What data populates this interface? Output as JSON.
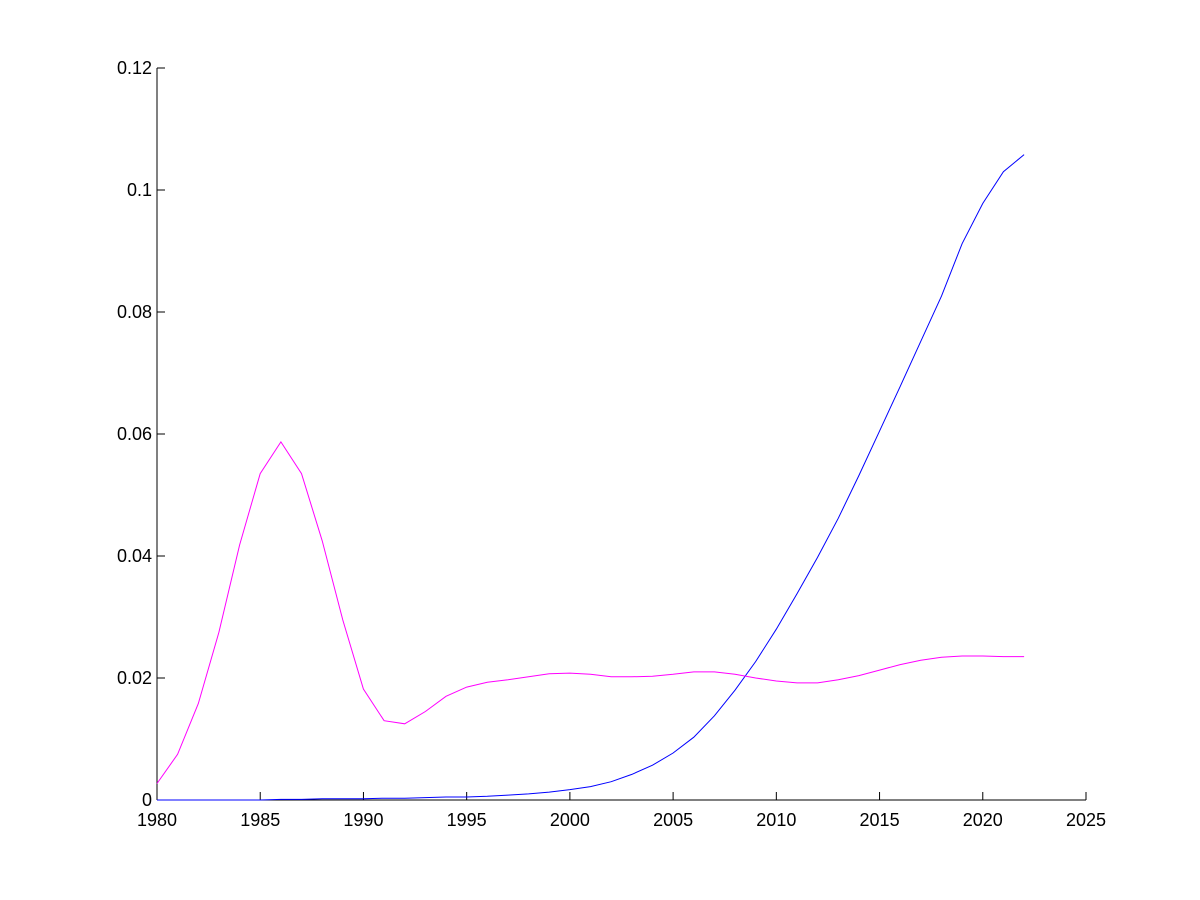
{
  "chart_data": {
    "type": "line",
    "title": "",
    "xlabel": "",
    "ylabel": "",
    "xlim": [
      1980,
      2025
    ],
    "ylim": [
      0,
      0.12
    ],
    "xticks": [
      1980,
      1985,
      1990,
      1995,
      2000,
      2005,
      2010,
      2015,
      2020,
      2025
    ],
    "yticks": [
      0,
      0.02,
      0.04,
      0.06,
      0.08,
      0.1,
      0.12
    ],
    "xtick_labels": [
      "1980",
      "1985",
      "1990",
      "1995",
      "2000",
      "2005",
      "2010",
      "2015",
      "2020",
      "2025"
    ],
    "ytick_labels": [
      "0",
      "0.02",
      "0.04",
      "0.06",
      "0.08",
      "0.1",
      "0.12"
    ],
    "grid": false,
    "legend": "none",
    "series": [
      {
        "color": "#0000ff",
        "x": [
          1980,
          1981,
          1982,
          1983,
          1984,
          1985,
          1986,
          1987,
          1988,
          1989,
          1990,
          1991,
          1992,
          1993,
          1994,
          1995,
          1996,
          1997,
          1998,
          1999,
          2000,
          2001,
          2002,
          2003,
          2004,
          2005,
          2006,
          2007,
          2008,
          2009,
          2010,
          2011,
          2012,
          2013,
          2014,
          2015,
          2016,
          2017,
          2018,
          2019,
          2020,
          2021,
          2022
        ],
        "values": [
          0.0,
          0.0,
          0.0,
          0.0,
          0.0,
          0.0,
          0.0001,
          0.0001,
          0.0002,
          0.0002,
          0.0002,
          0.0003,
          0.0003,
          0.0004,
          0.0005,
          0.0005,
          0.0006,
          0.0008,
          0.001,
          0.0013,
          0.0017,
          0.0022,
          0.003,
          0.0042,
          0.0057,
          0.0077,
          0.0103,
          0.0138,
          0.018,
          0.0227,
          0.028,
          0.0338,
          0.0398,
          0.0462,
          0.0532,
          0.0605,
          0.0678,
          0.0752,
          0.0826,
          0.0912,
          0.0978,
          0.103,
          0.1058
        ]
      },
      {
        "color": "#ff00ff",
        "x": [
          1980,
          1981,
          1982,
          1983,
          1984,
          1985,
          1986,
          1987,
          1988,
          1989,
          1990,
          1991,
          1992,
          1993,
          1994,
          1995,
          1996,
          1997,
          1998,
          1999,
          2000,
          2001,
          2002,
          2003,
          2004,
          2005,
          2006,
          2007,
          2008,
          2009,
          2010,
          2011,
          2012,
          2013,
          2014,
          2015,
          2016,
          2017,
          2018,
          2019,
          2020,
          2021,
          2022
        ],
        "values": [
          0.0027,
          0.0075,
          0.0158,
          0.0275,
          0.0418,
          0.0535,
          0.0587,
          0.0535,
          0.0425,
          0.0295,
          0.0182,
          0.013,
          0.0125,
          0.0145,
          0.017,
          0.0185,
          0.0193,
          0.0197,
          0.0202,
          0.0207,
          0.0208,
          0.0206,
          0.0202,
          0.0202,
          0.0203,
          0.0206,
          0.021,
          0.021,
          0.0206,
          0.02,
          0.0195,
          0.0192,
          0.0192,
          0.0197,
          0.0204,
          0.0213,
          0.0222,
          0.0229,
          0.0234,
          0.0236,
          0.0236,
          0.0235,
          0.0235
        ]
      }
    ]
  }
}
